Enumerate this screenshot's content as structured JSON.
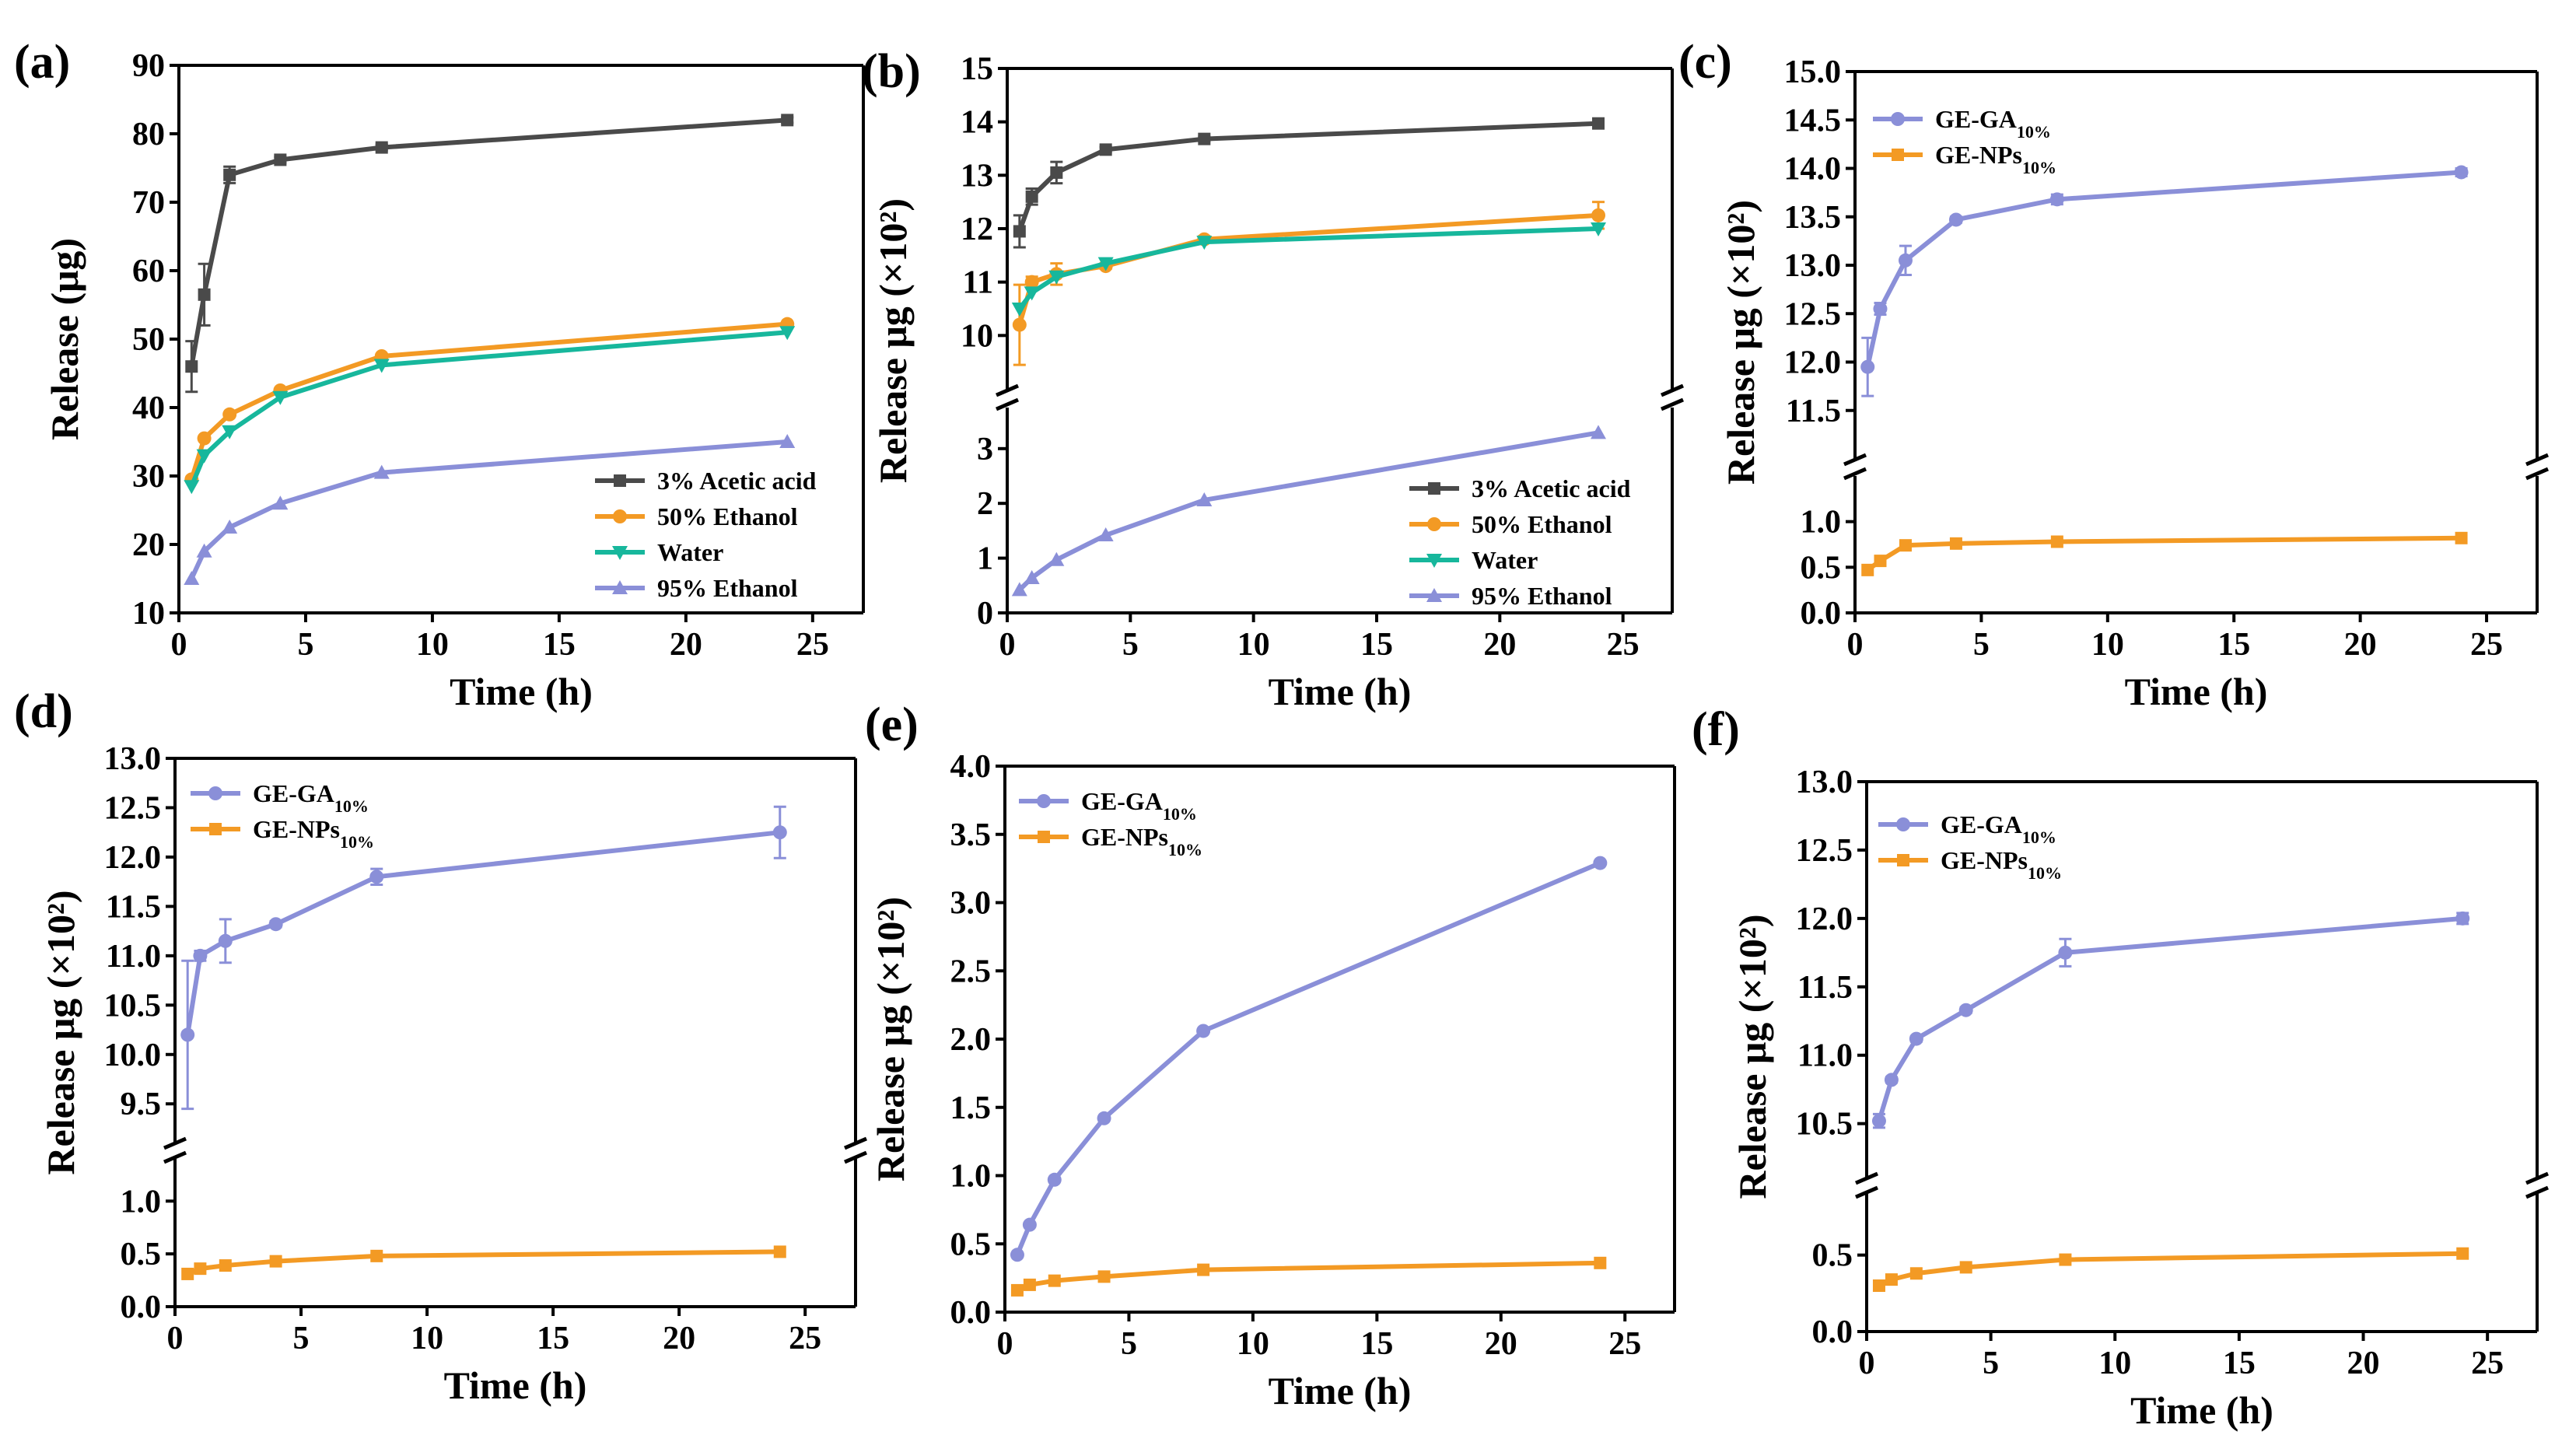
{
  "colors": {
    "acetic": "#4a4a4a",
    "ethanol50": "#f39a24",
    "water": "#17b79c",
    "ethanol95": "#8a8fd8",
    "ga": "#8a8fd8",
    "nps": "#f39a24"
  },
  "chart_data": [
    {
      "id": "a",
      "panel_label": "(a)",
      "type": "line",
      "xlabel": "Time (h)",
      "ylabel": "Release (μg)",
      "xlim": [
        0,
        27
      ],
      "xticks": [
        "0",
        "5",
        "10",
        "15",
        "20",
        "25"
      ],
      "ylim": [
        10,
        90
      ],
      "yticks": [
        "10",
        "20",
        "30",
        "40",
        "50",
        "60",
        "70",
        "80",
        "90"
      ],
      "legend_position": "bottom-right",
      "series": [
        {
          "name": "3% Acetic acid",
          "color_key": "acetic",
          "marker": "square",
          "x": [
            0.5,
            1,
            2,
            4,
            8,
            24
          ],
          "y": [
            46,
            56.5,
            74,
            76.2,
            78,
            82
          ],
          "err": [
            3.7,
            4.5,
            1.2,
            0.4,
            0.4,
            0.4
          ]
        },
        {
          "name": "50% Ethanol",
          "color_key": "ethanol50",
          "marker": "circle",
          "x": [
            0.5,
            1,
            2,
            4,
            8,
            24
          ],
          "y": [
            29.5,
            35.5,
            39,
            42.5,
            47.5,
            52.2
          ],
          "err": [
            0,
            0,
            0,
            0,
            0,
            0
          ]
        },
        {
          "name": "Water",
          "color_key": "water",
          "marker": "triangle-down",
          "x": [
            0.5,
            1,
            2,
            4,
            8,
            24
          ],
          "y": [
            28.5,
            33,
            36.5,
            41.5,
            46.2,
            51
          ],
          "err": [
            0,
            0,
            0,
            0,
            0,
            0
          ]
        },
        {
          "name": "95% Ethanol",
          "color_key": "ethanol95",
          "marker": "triangle-up",
          "x": [
            0.5,
            1,
            2,
            4,
            8,
            24
          ],
          "y": [
            15,
            19,
            22.5,
            26,
            30.5,
            35
          ],
          "err": [
            0,
            0,
            0,
            0,
            0,
            0
          ]
        }
      ]
    },
    {
      "id": "b",
      "panel_label": "(b)",
      "type": "line",
      "xlabel": "Time (h)",
      "ylabel": "Release μg (×10²)",
      "xlim": [
        0,
        27
      ],
      "xticks": [
        "0",
        "5",
        "10",
        "15",
        "20",
        "25"
      ],
      "broken_axis": true,
      "lower": {
        "ylim": [
          0,
          3.75
        ],
        "yticks": [
          "0",
          "1",
          "2",
          "3"
        ]
      },
      "upper": {
        "ylim": [
          9,
          15
        ],
        "yticks": [
          "10",
          "11",
          "12",
          "13",
          "14",
          "15"
        ]
      },
      "legend_position": "bottom-right",
      "series": [
        {
          "name": "3% Acetic acid",
          "color_key": "acetic",
          "marker": "square",
          "x": [
            0.5,
            1,
            2,
            4,
            8,
            24
          ],
          "y": [
            11.95,
            12.6,
            13.05,
            13.48,
            13.68,
            13.97
          ],
          "err": [
            0.3,
            0.15,
            0.2,
            0.05,
            0.04,
            0.04
          ]
        },
        {
          "name": "50% Ethanol",
          "color_key": "ethanol50",
          "marker": "circle",
          "x": [
            0.5,
            1,
            2,
            4,
            8,
            24
          ],
          "y": [
            10.2,
            11,
            11.15,
            11.3,
            11.8,
            12.25
          ],
          "err": [
            0.75,
            0.1,
            0.2,
            0.05,
            0.06,
            0.25
          ]
        },
        {
          "name": "Water",
          "color_key": "water",
          "marker": "triangle-down",
          "x": [
            0.5,
            1,
            2,
            4,
            8,
            24
          ],
          "y": [
            10.5,
            10.8,
            11.1,
            11.35,
            11.75,
            12
          ],
          "err": [
            0,
            0,
            0,
            0,
            0,
            0
          ]
        },
        {
          "name": "95% Ethanol",
          "color_key": "ethanol95",
          "marker": "triangle-up",
          "x": [
            0.5,
            1,
            2,
            4,
            8,
            24
          ],
          "y": [
            0.42,
            0.64,
            0.97,
            1.42,
            2.06,
            3.29
          ],
          "err": [
            0,
            0,
            0,
            0,
            0,
            0
          ]
        }
      ]
    },
    {
      "id": "c",
      "panel_label": "(c)",
      "type": "line",
      "xlabel": "Time (h)",
      "ylabel": "Release μg (×10²)",
      "xlim": [
        0,
        27
      ],
      "xticks": [
        "0",
        "5",
        "10",
        "15",
        "20",
        "25"
      ],
      "broken_axis": true,
      "lower": {
        "ylim": [
          0,
          1.5
        ],
        "yticks": [
          "0.0",
          "0.5",
          "1.0"
        ]
      },
      "upper": {
        "ylim": [
          11,
          15
        ],
        "yticks": [
          "11.5",
          "12.0",
          "12.5",
          "13.0",
          "13.5",
          "14.0",
          "14.5",
          "15.0"
        ]
      },
      "legend_position": "top-left",
      "series": [
        {
          "name": "GE-GA",
          "subscript": "10%",
          "color_key": "ga",
          "marker": "circle",
          "x": [
            0.5,
            1,
            2,
            4,
            8,
            24
          ],
          "y": [
            11.95,
            12.55,
            13.05,
            13.47,
            13.68,
            13.96
          ],
          "err": [
            0.3,
            0.06,
            0.15,
            0.03,
            0.05,
            0.04
          ]
        },
        {
          "name": "GE-NPs",
          "subscript": "10%",
          "color_key": "nps",
          "marker": "square",
          "x": [
            0.5,
            1,
            2,
            4,
            8,
            24
          ],
          "y": [
            0.47,
            0.57,
            0.74,
            0.76,
            0.78,
            0.82
          ],
          "err": [
            0,
            0,
            0,
            0,
            0,
            0
          ]
        }
      ]
    },
    {
      "id": "d",
      "panel_label": "(d)",
      "type": "line",
      "xlabel": "Time (h)",
      "ylabel": "Release μg (×10²)",
      "xlim": [
        0,
        27
      ],
      "xticks": [
        "0",
        "5",
        "10",
        "15",
        "20",
        "25"
      ],
      "broken_axis": true,
      "lower": {
        "ylim": [
          0,
          1.4
        ],
        "yticks": [
          "0.0",
          "0.5",
          "1.0"
        ]
      },
      "upper": {
        "ylim": [
          9.1,
          13
        ],
        "yticks": [
          "9.5",
          "10.0",
          "10.5",
          "11.0",
          "11.5",
          "12.0",
          "12.5",
          "13.0"
        ]
      },
      "legend_position": "top-left",
      "series": [
        {
          "name": "GE-GA",
          "subscript": "10%",
          "color_key": "ga",
          "marker": "circle",
          "x": [
            0.5,
            1,
            2,
            4,
            8,
            24
          ],
          "y": [
            10.2,
            11,
            11.15,
            11.32,
            11.8,
            12.25
          ],
          "err": [
            0.75,
            0.05,
            0.22,
            0.03,
            0.08,
            0.26
          ]
        },
        {
          "name": "GE-NPs",
          "subscript": "10%",
          "color_key": "nps",
          "marker": "square",
          "x": [
            0.5,
            1,
            2,
            4,
            8,
            24
          ],
          "y": [
            0.31,
            0.36,
            0.39,
            0.43,
            0.48,
            0.52
          ],
          "err": [
            0,
            0,
            0,
            0,
            0,
            0
          ]
        }
      ]
    },
    {
      "id": "e",
      "panel_label": "(e)",
      "type": "line",
      "xlabel": "Time (h)",
      "ylabel": "Release μg (×10²)",
      "xlim": [
        0,
        27
      ],
      "xticks": [
        "0",
        "5",
        "10",
        "15",
        "20",
        "25"
      ],
      "ylim": [
        0,
        4
      ],
      "yticks": [
        "0.0",
        "0.5",
        "1.0",
        "1.5",
        "2.0",
        "2.5",
        "3.0",
        "3.5",
        "4.0"
      ],
      "legend_position": "top-left",
      "series": [
        {
          "name": "GE-GA",
          "subscript": "10%",
          "color_key": "ga",
          "marker": "circle",
          "x": [
            0.5,
            1,
            2,
            4,
            8,
            24
          ],
          "y": [
            0.42,
            0.64,
            0.97,
            1.42,
            2.06,
            3.29
          ],
          "err": [
            0,
            0,
            0,
            0,
            0,
            0
          ]
        },
        {
          "name": "GE-NPs",
          "subscript": "10%",
          "color_key": "nps",
          "marker": "square",
          "x": [
            0.5,
            1,
            2,
            4,
            8,
            24
          ],
          "y": [
            0.16,
            0.2,
            0.23,
            0.26,
            0.31,
            0.36
          ],
          "err": [
            0,
            0,
            0,
            0,
            0,
            0
          ]
        }
      ]
    },
    {
      "id": "f",
      "panel_label": "(f)",
      "type": "line",
      "xlabel": "Time (h)",
      "ylabel": "Release μg (×10²)",
      "xlim": [
        0,
        27
      ],
      "xticks": [
        "0",
        "5",
        "10",
        "15",
        "20",
        "25"
      ],
      "broken_axis": true,
      "lower": {
        "ylim": [
          0,
          0.9
        ],
        "yticks": [
          "0.0",
          "0.5"
        ]
      },
      "upper": {
        "ylim": [
          10.1,
          13
        ],
        "yticks": [
          "10.5",
          "11.0",
          "11.5",
          "12.0",
          "12.5",
          "13.0"
        ]
      },
      "legend_position": "top-left",
      "series": [
        {
          "name": "GE-GA",
          "subscript": "10%",
          "color_key": "ga",
          "marker": "circle",
          "x": [
            0.5,
            1,
            2,
            4,
            8,
            24
          ],
          "y": [
            10.52,
            10.82,
            11.12,
            11.33,
            11.75,
            12
          ],
          "err": [
            0.05,
            0.02,
            0.02,
            0.02,
            0.1,
            0.04
          ]
        },
        {
          "name": "GE-NPs",
          "subscript": "10%",
          "color_key": "nps",
          "marker": "square",
          "x": [
            0.5,
            1,
            2,
            4,
            8,
            24
          ],
          "y": [
            0.3,
            0.34,
            0.38,
            0.42,
            0.47,
            0.51
          ],
          "err": [
            0,
            0,
            0,
            0,
            0,
            0
          ]
        }
      ]
    }
  ]
}
